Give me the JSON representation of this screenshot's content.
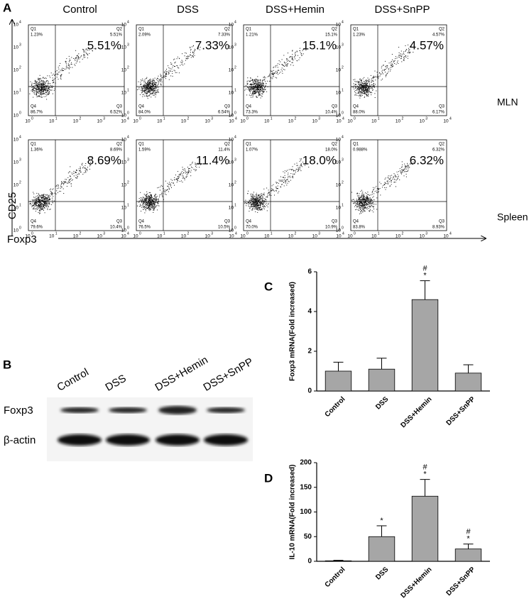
{
  "panel_a": {
    "label": "A",
    "y_axis": "CD25",
    "x_axis": "Foxp3",
    "columns": [
      "Control",
      "DSS",
      "DSS+Hemin",
      "DSS+SnPP"
    ],
    "rows": [
      "MLN",
      "Spleen"
    ],
    "quadrant_names": [
      "Q1",
      "Q2",
      "Q3",
      "Q4"
    ],
    "tick_base": "10",
    "tick_exponents": [
      "0",
      "1",
      "2",
      "3",
      "4"
    ],
    "plots": [
      [
        {
          "q1": "1.23%",
          "q2": "5.51%",
          "q3": "6.52%",
          "q4": "86.7%"
        },
        {
          "q1": "2.09%",
          "q2": "7.33%",
          "q3": "6.54%",
          "q4": "84.0%"
        },
        {
          "q1": "1.21%",
          "q2": "15.1%",
          "q3": "10.4%",
          "q4": "73.3%"
        },
        {
          "q1": "1.23%",
          "q2": "4.57%",
          "q3": "6.17%",
          "q4": "88.0%"
        }
      ],
      [
        {
          "q1": "1.36%",
          "q2": "8.69%",
          "q3": "10.4%",
          "q4": "79.6%"
        },
        {
          "q1": "1.59%",
          "q2": "11.4%",
          "q3": "10.5%",
          "q4": "76.5%"
        },
        {
          "q1": "1.07%",
          "q2": "18.0%",
          "q3": "10.9%",
          "q4": "70.0%"
        },
        {
          "q1": "0.988%",
          "q2": "6.32%",
          "q3": "8.93%",
          "q4": "83.8%"
        }
      ]
    ]
  },
  "panel_b": {
    "label": "B",
    "lanes": [
      "Control",
      "DSS",
      "DSS+Hemin",
      "DSS+SnPP"
    ],
    "bands": [
      "Foxp3",
      "β-actin"
    ]
  },
  "chart_data": [
    {
      "type": "bar",
      "panel": "C",
      "y_label": "Foxp3 mRNA(Fold increased)",
      "categories": [
        "Control",
        "DSS",
        "DSS+Hemin",
        "DSS+SnPP"
      ],
      "values": [
        1.0,
        1.1,
        4.6,
        0.9
      ],
      "errors": [
        0.45,
        0.55,
        0.95,
        0.42
      ],
      "color": "#a6a6a6",
      "ylim": [
        0,
        6
      ],
      "yticks": [
        0,
        2,
        4,
        6
      ],
      "markers": [
        {
          "category": "DSS+Hemin",
          "text": [
            "#",
            "*"
          ]
        }
      ]
    },
    {
      "type": "bar",
      "panel": "D",
      "y_label": "IL-10 mRNA(Fold increased)",
      "categories": [
        "Control",
        "DSS",
        "DSS+Hemin",
        "DSS+SnPP"
      ],
      "values": [
        1,
        50,
        132,
        25
      ],
      "errors": [
        1,
        22,
        34,
        10
      ],
      "color": "#a6a6a6",
      "ylim": [
        0,
        200
      ],
      "yticks": [
        0,
        50,
        100,
        150,
        200
      ],
      "markers": [
        {
          "category": "DSS",
          "text": [
            "*"
          ]
        },
        {
          "category": "DSS+Hemin",
          "text": [
            "#",
            "*"
          ]
        },
        {
          "category": "DSS+SnPP",
          "text": [
            "#",
            "*"
          ]
        }
      ]
    }
  ]
}
